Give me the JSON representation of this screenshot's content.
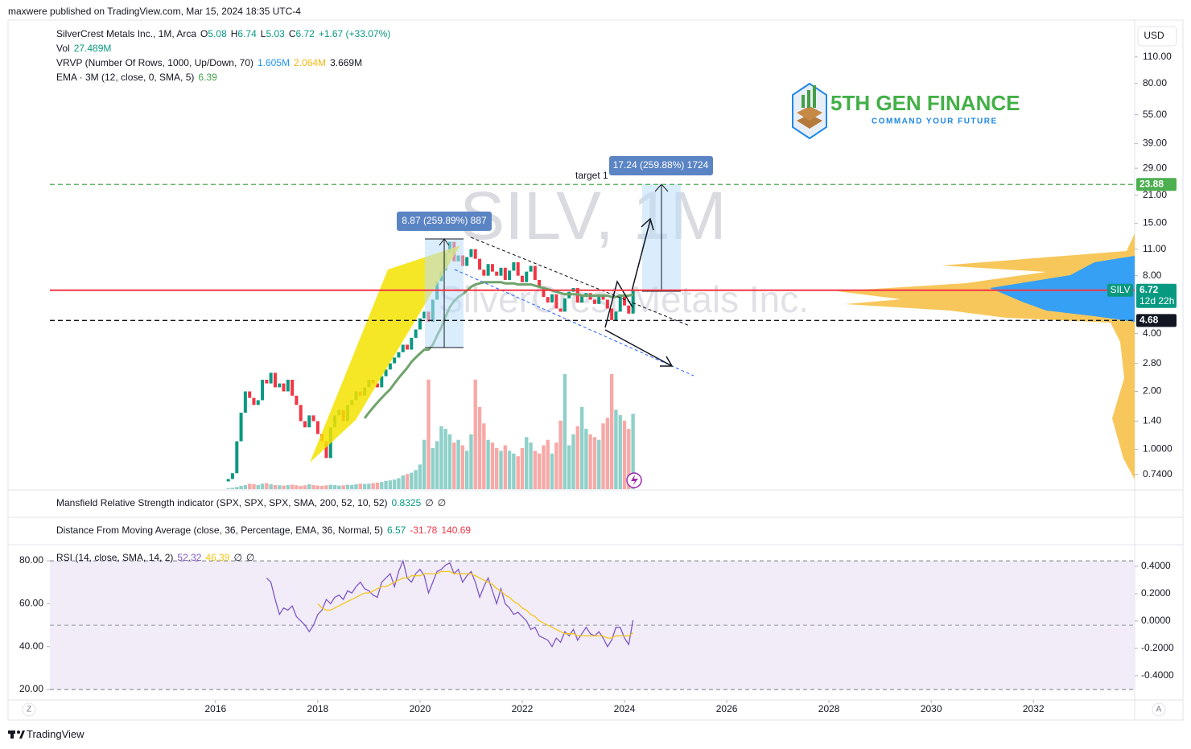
{
  "header": {
    "publisher": "maxwere published on TradingView.com, Mar 15, 2024 18:35 UTC-4"
  },
  "footer": {
    "brand": "TradingView"
  },
  "logo": {
    "name": "5TH GEN FINANCE",
    "tagline": "COMMAND YOUR FUTURE"
  },
  "controls": {
    "currency": "USD",
    "scale_left": "Z",
    "scale_right": "A"
  },
  "indicator_panes": [
    {
      "legend": [
        {
          "text": "Mansfield Relative Strength indicator (SPX, SPX, SPX, SMA, 200, 52, 10, 52)",
          "color": "#131722"
        },
        {
          "text": "0.8325",
          "color": "#089981"
        },
        {
          "text": "∅",
          "color": "#131722"
        },
        {
          "text": "∅",
          "color": "#131722"
        }
      ]
    },
    {
      "legend": [
        {
          "text": "Distance From Moving Average (close, 36, Percentage, EMA, 36, Normal, 5)",
          "color": "#131722"
        },
        {
          "text": "6.57",
          "color": "#089981"
        },
        {
          "text": "-31.78",
          "color": "#f23645"
        },
        {
          "text": "140.69",
          "color": "#f23645"
        }
      ]
    }
  ],
  "chart_data": [
    {
      "type": "candlestick",
      "watermark": "SILV, 1M",
      "watermark_name": "SilverCrest Metals Inc.",
      "log_scale": true,
      "grid": false,
      "legend_lines": [
        [
          {
            "text": "SilverCrest Metals Inc., 1M, Arca",
            "color": "#131722"
          },
          {
            "text": "O",
            "color": "#131722"
          },
          {
            "text": "5.08",
            "color": "#089981"
          },
          {
            "text": "H",
            "color": "#131722"
          },
          {
            "text": "6.74",
            "color": "#089981"
          },
          {
            "text": "L",
            "color": "#131722"
          },
          {
            "text": "5.03",
            "color": "#089981"
          },
          {
            "text": "C",
            "color": "#131722"
          },
          {
            "text": "6.72",
            "color": "#089981"
          },
          {
            "text": "+1.67 (+33.07%)",
            "color": "#089981"
          }
        ],
        [
          {
            "text": "Vol",
            "color": "#131722"
          },
          {
            "text": "27.489M",
            "color": "#089981"
          }
        ],
        [
          {
            "text": "VRVP (Number Of Rows, 1000, Up/Down, 70)",
            "color": "#131722"
          },
          {
            "text": "1.605M",
            "color": "#2196f3"
          },
          {
            "text": "2.064M",
            "color": "#f5b70f"
          },
          {
            "text": "3.669M",
            "color": "#131722"
          }
        ],
        [
          {
            "text": "EMA · 3M (12, close, 0, SMA, 5)",
            "color": "#131722"
          },
          {
            "text": "6.39",
            "color": "#43a047"
          }
        ]
      ],
      "x": [
        2016.25,
        2016.333,
        2016.417,
        2016.5,
        2016.583,
        2016.667,
        2016.75,
        2016.833,
        2016.917,
        2017,
        2017.083,
        2017.167,
        2017.25,
        2017.333,
        2017.417,
        2017.5,
        2017.583,
        2017.667,
        2017.75,
        2017.833,
        2017.917,
        2018,
        2018.083,
        2018.167,
        2018.25,
        2018.333,
        2018.417,
        2018.5,
        2018.583,
        2018.667,
        2018.75,
        2018.833,
        2018.917,
        2019,
        2019.083,
        2019.167,
        2019.25,
        2019.333,
        2019.417,
        2019.5,
        2019.583,
        2019.667,
        2019.75,
        2019.833,
        2019.917,
        2020,
        2020.083,
        2020.167,
        2020.25,
        2020.333,
        2020.417,
        2020.5,
        2020.583,
        2020.667,
        2020.75,
        2020.833,
        2020.917,
        2021,
        2021.083,
        2021.167,
        2021.25,
        2021.333,
        2021.417,
        2021.5,
        2021.583,
        2021.667,
        2021.75,
        2021.833,
        2021.917,
        2022,
        2022.083,
        2022.167,
        2022.25,
        2022.333,
        2022.417,
        2022.5,
        2022.583,
        2022.667,
        2022.75,
        2022.833,
        2022.917,
        2023,
        2023.083,
        2023.167,
        2023.25,
        2023.333,
        2023.417,
        2023.5,
        2023.583,
        2023.667,
        2023.75,
        2023.833,
        2023.917,
        2024,
        2024.083,
        2024.167
      ],
      "open": [
        0.68,
        0.7,
        0.75,
        1.1,
        1.55,
        2.0,
        1.85,
        1.7,
        1.8,
        2.3,
        2.2,
        2.5,
        2.1,
        2.2,
        2.0,
        2.3,
        1.9,
        1.7,
        1.4,
        1.3,
        1.5,
        1.4,
        1.2,
        1.1,
        0.9,
        1.3,
        1.5,
        1.6,
        1.4,
        1.7,
        1.8,
        2.0,
        1.9,
        2.1,
        2.3,
        2.2,
        2.1,
        2.4,
        2.6,
        2.8,
        3.0,
        3.2,
        3.5,
        3.3,
        3.8,
        4.2,
        4.8,
        5.2,
        4.6,
        6.0,
        7.5,
        8.5,
        10.5,
        12.0,
        9.5,
        10.2,
        9.0,
        10.0,
        11.0,
        9.8,
        8.6,
        8.0,
        9.2,
        8.4,
        8.0,
        8.8,
        7.6,
        8.5,
        9.4,
        8.0,
        7.4,
        8.4,
        9.0,
        7.6,
        7.0,
        6.2,
        5.8,
        6.4,
        5.4,
        5.2,
        6.1,
        6.6,
        6.9,
        5.8,
        6.3,
        6.5,
        6.0,
        5.7,
        6.4,
        6.0,
        5.4,
        4.7,
        5.2,
        6.4,
        5.6,
        5.08
      ],
      "close": [
        0.7,
        0.75,
        1.1,
        1.55,
        2.0,
        1.85,
        1.7,
        1.8,
        2.3,
        2.2,
        2.5,
        2.1,
        2.2,
        2.0,
        2.3,
        1.9,
        1.7,
        1.4,
        1.3,
        1.5,
        1.4,
        1.2,
        1.1,
        0.9,
        1.3,
        1.5,
        1.6,
        1.4,
        1.7,
        1.8,
        2.0,
        1.9,
        2.1,
        2.3,
        2.2,
        2.1,
        2.4,
        2.6,
        2.8,
        3.0,
        3.2,
        3.5,
        3.3,
        3.8,
        4.2,
        4.8,
        5.2,
        4.6,
        6.0,
        7.5,
        8.5,
        10.5,
        12.0,
        9.5,
        10.2,
        9.0,
        10.0,
        11.0,
        9.8,
        8.6,
        8.0,
        9.2,
        8.4,
        8.0,
        8.8,
        7.6,
        8.5,
        9.4,
        8.0,
        7.4,
        8.4,
        9.0,
        7.6,
        7.0,
        6.2,
        5.8,
        6.4,
        5.4,
        5.2,
        6.1,
        6.6,
        6.9,
        5.8,
        6.3,
        6.5,
        6.0,
        5.7,
        6.4,
        6.0,
        5.4,
        4.7,
        5.2,
        6.4,
        5.6,
        5.08,
        6.72
      ],
      "volume": [
        0.3,
        0.5,
        0.8,
        1.2,
        1.5,
        2.0,
        1.8,
        1.5,
        2.0,
        2.2,
        1.8,
        1.5,
        1.4,
        1.3,
        1.5,
        1.6,
        1.4,
        1.2,
        1.4,
        1.8,
        1.5,
        1.3,
        1.2,
        1.4,
        1.6,
        1.5,
        1.3,
        1.4,
        1.6,
        1.5,
        1.8,
        2.0,
        1.9,
        2.0,
        2.2,
        2.4,
        2.6,
        3.0,
        3.2,
        3.5,
        4.0,
        5.0,
        5.5,
        6.0,
        7.0,
        9.0,
        18.0,
        40.0,
        15.0,
        17.5,
        23.0,
        22.0,
        20.0,
        17.0,
        18.0,
        16.0,
        14.0,
        20.0,
        40.0,
        30.0,
        24.0,
        18.0,
        17.0,
        15.0,
        14.0,
        16.0,
        14.0,
        13.0,
        12.0,
        15.0,
        19.0,
        17.0,
        14.0,
        13.0,
        16.0,
        18.0,
        13.0,
        17.0,
        25.0,
        42.0,
        16.0,
        20.0,
        23.0,
        30.0,
        22.0,
        20.0,
        19.0,
        18.0,
        24.0,
        26.0,
        42.0,
        29.0,
        27.0,
        25.0,
        22.0,
        27.489
      ],
      "up_color": "#089981",
      "down_color": "#f23645",
      "volume_up_color": "#8fd0c9",
      "volume_down_color": "#f7a9a7",
      "ema": {
        "color": "#6fa36b",
        "values": [
          null,
          null,
          null,
          null,
          null,
          null,
          null,
          null,
          null,
          null,
          null,
          null,
          null,
          null,
          null,
          null,
          null,
          null,
          null,
          null,
          null,
          null,
          null,
          null,
          null,
          null,
          null,
          null,
          null,
          null,
          null,
          null,
          1.45,
          1.55,
          1.65,
          1.75,
          1.85,
          1.95,
          2.05,
          2.2,
          2.35,
          2.5,
          2.65,
          2.85,
          3.0,
          3.15,
          3.3,
          3.3,
          3.5,
          3.9,
          4.3,
          4.9,
          5.5,
          5.9,
          6.2,
          6.4,
          6.7,
          7.0,
          7.2,
          7.3,
          7.4,
          7.4,
          7.4,
          7.4,
          7.4,
          7.3,
          7.3,
          7.3,
          7.2,
          7.2,
          7.2,
          7.2,
          7.1,
          7.0,
          6.9,
          6.8,
          6.7,
          6.6,
          6.5,
          6.4,
          6.4,
          6.4,
          6.4,
          6.3,
          6.3,
          6.3,
          6.3,
          6.3,
          6.3,
          6.3,
          6.2,
          6.2,
          6.3,
          6.3,
          6.3,
          6.39
        ]
      },
      "levels": [
        {
          "value": 23.88,
          "color": "#4caf50",
          "style": "dashed"
        },
        {
          "value": 6.72,
          "color": "#f23645",
          "style": "solid",
          "tag": "SILV",
          "countdown": "12d 22h",
          "box_color": "#089981"
        },
        {
          "value": 4.68,
          "color": "#131722",
          "style": "dashed"
        }
      ],
      "annotations": [
        "8.87 (259.89%) 887",
        "17.24 (259.88%) 1724",
        "target 1"
      ],
      "xlim": [
        2012.76,
        2033.98
      ],
      "xticks": [
        2016,
        2018,
        2020,
        2022,
        2024,
        2026,
        2028,
        2030,
        2032
      ],
      "ylim": [
        0.62,
        163
      ],
      "yticks": [
        {
          "value": 0.74,
          "label": "0.7400"
        },
        {
          "value": 1,
          "label": "1.0000"
        },
        {
          "value": 1.4,
          "label": "1.40"
        },
        {
          "value": 2,
          "label": "2.00"
        },
        {
          "value": 2.8,
          "label": "2.80"
        },
        {
          "value": 4,
          "label": "4.00"
        },
        {
          "value": 8,
          "label": "8.00"
        },
        {
          "value": 11,
          "label": "11.00"
        },
        {
          "value": 15,
          "label": "15.00"
        },
        {
          "value": 21,
          "label": "21.00"
        },
        {
          "value": 29,
          "label": "29.00"
        },
        {
          "value": 39,
          "label": "39.00"
        },
        {
          "value": 55,
          "label": "55.00"
        },
        {
          "value": 80,
          "label": "80.00"
        },
        {
          "value": 110,
          "label": "110.00"
        }
      ]
    },
    {
      "type": "line",
      "legend": [
        {
          "text": "RSI (14, close, SMA, 14, 2)",
          "color": "#131722"
        },
        {
          "text": "52.32",
          "color": "#7e57c2"
        },
        {
          "text": "46.39",
          "color": "#f5c518"
        },
        {
          "text": "∅",
          "color": "#131722"
        },
        {
          "text": "∅",
          "color": "#131722"
        }
      ],
      "x": [
        2017,
        2017.083,
        2017.167,
        2017.25,
        2017.333,
        2017.417,
        2017.5,
        2017.583,
        2017.667,
        2017.75,
        2017.833,
        2017.917,
        2018,
        2018.083,
        2018.167,
        2018.25,
        2018.333,
        2018.417,
        2018.5,
        2018.583,
        2018.667,
        2018.75,
        2018.833,
        2018.917,
        2019,
        2019.083,
        2019.167,
        2019.25,
        2019.333,
        2019.417,
        2019.5,
        2019.583,
        2019.667,
        2019.75,
        2019.833,
        2019.917,
        2020,
        2020.083,
        2020.167,
        2020.25,
        2020.333,
        2020.417,
        2020.5,
        2020.583,
        2020.667,
        2020.75,
        2020.833,
        2020.917,
        2021,
        2021.083,
        2021.167,
        2021.25,
        2021.333,
        2021.417,
        2021.5,
        2021.583,
        2021.667,
        2021.75,
        2021.833,
        2021.917,
        2022,
        2022.083,
        2022.167,
        2022.25,
        2022.333,
        2022.417,
        2022.5,
        2022.583,
        2022.667,
        2022.75,
        2022.833,
        2022.917,
        2023,
        2023.083,
        2023.167,
        2023.25,
        2023.333,
        2023.417,
        2023.5,
        2023.583,
        2023.667,
        2023.75,
        2023.833,
        2023.917,
        2024,
        2024.083,
        2024.167
      ],
      "series": [
        {
          "color": "#7e57c2",
          "values": [
            72,
            70,
            62,
            55,
            58,
            57,
            59,
            54,
            52,
            50,
            47,
            50,
            55,
            57,
            62,
            60,
            63,
            64,
            62,
            66,
            65,
            68,
            70,
            67,
            66,
            64,
            63,
            70,
            72,
            74,
            68,
            75,
            80,
            72,
            70,
            74,
            76,
            73,
            65,
            70,
            75,
            76,
            78,
            79,
            74,
            76,
            70,
            73,
            75,
            70,
            63,
            68,
            72,
            66,
            60,
            67,
            60,
            58,
            55,
            56,
            54,
            52,
            48,
            49,
            45,
            44,
            43,
            40,
            44,
            42,
            47,
            45,
            48,
            43,
            46,
            49,
            46,
            45,
            47,
            44,
            40,
            43,
            49,
            49,
            44,
            41,
            52.32
          ]
        },
        {
          "color": "#f5c518",
          "values": [
            null,
            null,
            null,
            null,
            null,
            null,
            null,
            null,
            null,
            null,
            null,
            null,
            60,
            58,
            57,
            57,
            58,
            59,
            60,
            61,
            62,
            63,
            64,
            65,
            65,
            66,
            67,
            68,
            68,
            69,
            70,
            71,
            72,
            72,
            73,
            73,
            73,
            74,
            74,
            74,
            74,
            75,
            75,
            75,
            74,
            74,
            74,
            74,
            74,
            73,
            72,
            71,
            70,
            69,
            67,
            66,
            64,
            63,
            61,
            60,
            58,
            57,
            55,
            54,
            52,
            51,
            50,
            49,
            48,
            47,
            46,
            46,
            46,
            45,
            45,
            45,
            45,
            45,
            45,
            45,
            44,
            44,
            45,
            45,
            45,
            45,
            46.39
          ]
        }
      ],
      "band": [
        20,
        80
      ],
      "midline": 50,
      "band_color": "#ede7f6",
      "xlim": [
        2012.76,
        2033.98
      ],
      "ylim": [
        15.9,
        86.4
      ],
      "yticks": [
        {
          "value": 20,
          "label": "20.00"
        },
        {
          "value": 40,
          "label": "40.00"
        },
        {
          "value": 60,
          "label": "60.00"
        },
        {
          "value": 80,
          "label": "80.00"
        }
      ],
      "y2lim": [
        -0.565,
        0.541
      ],
      "y2ticks": [
        {
          "value": 0.4,
          "label": "0.4000"
        },
        {
          "value": 0.2,
          "label": "0.2000"
        },
        {
          "value": 0,
          "label": "0.0000"
        },
        {
          "value": -0.2,
          "label": "-0.2000"
        },
        {
          "value": -0.4,
          "label": "-0.4000"
        }
      ]
    }
  ]
}
